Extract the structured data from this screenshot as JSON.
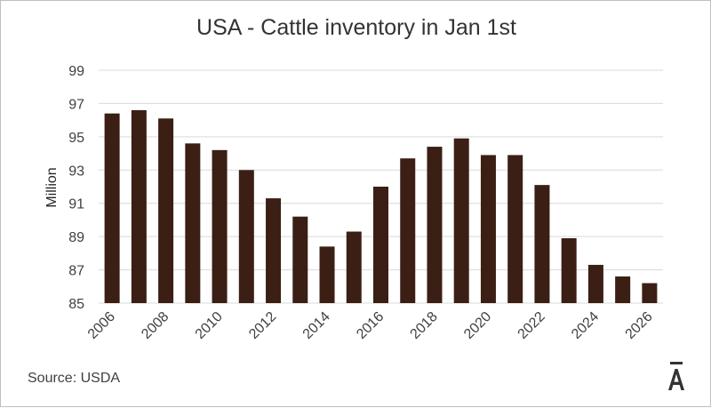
{
  "chart_data": {
    "type": "bar",
    "title": "USA - Cattle inventory in Jan 1st",
    "ylabel": "Million",
    "xlabel": "",
    "ylim": [
      85,
      99
    ],
    "yticks": [
      85,
      87,
      89,
      91,
      93,
      95,
      97,
      99
    ],
    "xtick_labels": [
      "2006",
      "2008",
      "2010",
      "2012",
      "2014",
      "2016",
      "2018",
      "2020",
      "2022",
      "2024",
      "2026"
    ],
    "grid": true,
    "bar_color": "#3b1f14",
    "categories": [
      "2006",
      "2007",
      "2008",
      "2009",
      "2010",
      "2011",
      "2012",
      "2013",
      "2014",
      "2015",
      "2016",
      "2017",
      "2018",
      "2019",
      "2020",
      "2021",
      "2022",
      "2023",
      "2024",
      "2025",
      "2026"
    ],
    "values": [
      96.4,
      96.6,
      96.1,
      94.6,
      94.2,
      93.0,
      91.3,
      90.2,
      88.4,
      89.3,
      92.0,
      93.7,
      94.4,
      94.9,
      93.9,
      93.9,
      92.1,
      88.9,
      87.3,
      86.6,
      86.2
    ]
  },
  "footer": {
    "source": "Source: USDA",
    "logo_text": "Ā"
  },
  "colors": {
    "grid": "#d9d9d9",
    "text": "#404040"
  }
}
